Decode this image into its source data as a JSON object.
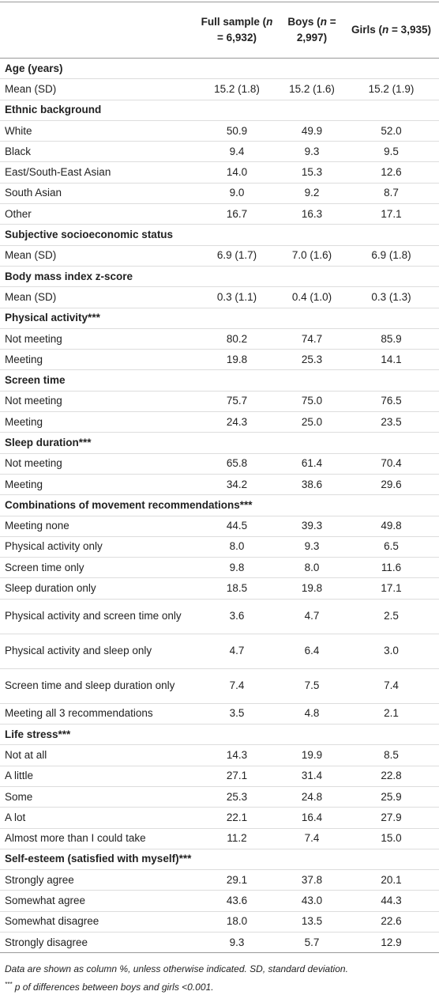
{
  "table": {
    "columns": [
      {
        "before": "Full sample (",
        "italic": "n",
        "after": " = 6,932)"
      },
      {
        "before": "Boys (",
        "italic": "n",
        "after": " = 2,997)"
      },
      {
        "before": "Girls (",
        "italic": "n",
        "after": " = 3,935)"
      }
    ],
    "sections": [
      {
        "title": "Age (years)",
        "rows": [
          [
            "Mean (SD)",
            "15.2 (1.8)",
            "15.2 (1.6)",
            "15.2 (1.9)"
          ]
        ]
      },
      {
        "title": "Ethnic background",
        "rows": [
          [
            "White",
            "50.9",
            "49.9",
            "52.0"
          ],
          [
            "Black",
            "9.4",
            "9.3",
            "9.5"
          ],
          [
            "East/South-East Asian",
            "14.0",
            "15.3",
            "12.6"
          ],
          [
            "South Asian",
            "9.0",
            "9.2",
            "8.7"
          ],
          [
            "Other",
            "16.7",
            "16.3",
            "17.1"
          ]
        ]
      },
      {
        "title": "Subjective socioeconomic status",
        "rows": [
          [
            "Mean (SD)",
            "6.9 (1.7)",
            "7.0 (1.6)",
            "6.9 (1.8)"
          ]
        ]
      },
      {
        "title": "Body mass index z-score",
        "rows": [
          [
            "Mean (SD)",
            "0.3 (1.1)",
            "0.4 (1.0)",
            "0.3 (1.3)"
          ]
        ]
      },
      {
        "title": "Physical activity***",
        "rows": [
          [
            "Not meeting",
            "80.2",
            "74.7",
            "85.9"
          ],
          [
            "Meeting",
            "19.8",
            "25.3",
            "14.1"
          ]
        ]
      },
      {
        "title": "Screen time",
        "rows": [
          [
            "Not meeting",
            "75.7",
            "75.0",
            "76.5"
          ],
          [
            "Meeting",
            "24.3",
            "25.0",
            "23.5"
          ]
        ]
      },
      {
        "title": "Sleep duration***",
        "rows": [
          [
            "Not meeting",
            "65.8",
            "61.4",
            "70.4"
          ],
          [
            "Meeting",
            "34.2",
            "38.6",
            "29.6"
          ]
        ]
      },
      {
        "title": "Combinations of movement recommendations***",
        "rows": [
          [
            "Meeting none",
            "44.5",
            "39.3",
            "49.8"
          ],
          [
            "Physical activity only",
            "8.0",
            "9.3",
            "6.5"
          ],
          [
            "Screen time only",
            "9.8",
            "8.0",
            "11.6"
          ],
          [
            "Sleep duration only",
            "18.5",
            "19.8",
            "17.1"
          ],
          [
            "Physical activity and screen time only",
            "3.6",
            "4.7",
            "2.5"
          ],
          [
            "Physical activity and sleep only",
            "4.7",
            "6.4",
            "3.0"
          ],
          [
            "Screen time and sleep duration only",
            "7.4",
            "7.5",
            "7.4"
          ],
          [
            "Meeting all 3 recommendations",
            "3.5",
            "4.8",
            "2.1"
          ]
        ]
      },
      {
        "title": "Life stress***",
        "rows": [
          [
            "Not at all",
            "14.3",
            "19.9",
            "8.5"
          ],
          [
            "A little",
            "27.1",
            "31.4",
            "22.8"
          ],
          [
            "Some",
            "25.3",
            "24.8",
            "25.9"
          ],
          [
            "A lot",
            "22.1",
            "16.4",
            "27.9"
          ],
          [
            "Almost more than I could take",
            "11.2",
            "7.4",
            "15.0"
          ]
        ]
      },
      {
        "title": "Self-esteem (satisfied with myself)***",
        "rows": [
          [
            "Strongly agree",
            "29.1",
            "37.8",
            "20.1"
          ],
          [
            "Somewhat agree",
            "43.6",
            "43.0",
            "44.3"
          ],
          [
            "Somewhat disagree",
            "18.0",
            "13.5",
            "22.6"
          ],
          [
            "Strongly disagree",
            "9.3",
            "5.7",
            "12.9"
          ]
        ]
      }
    ]
  },
  "footnotes": {
    "note": "Data are shown as column %, unless otherwise indicated. SD, standard deviation.",
    "sig": {
      "mark": "***",
      "italic": "p",
      "after": " of differences between boys and girls <0.001."
    }
  }
}
